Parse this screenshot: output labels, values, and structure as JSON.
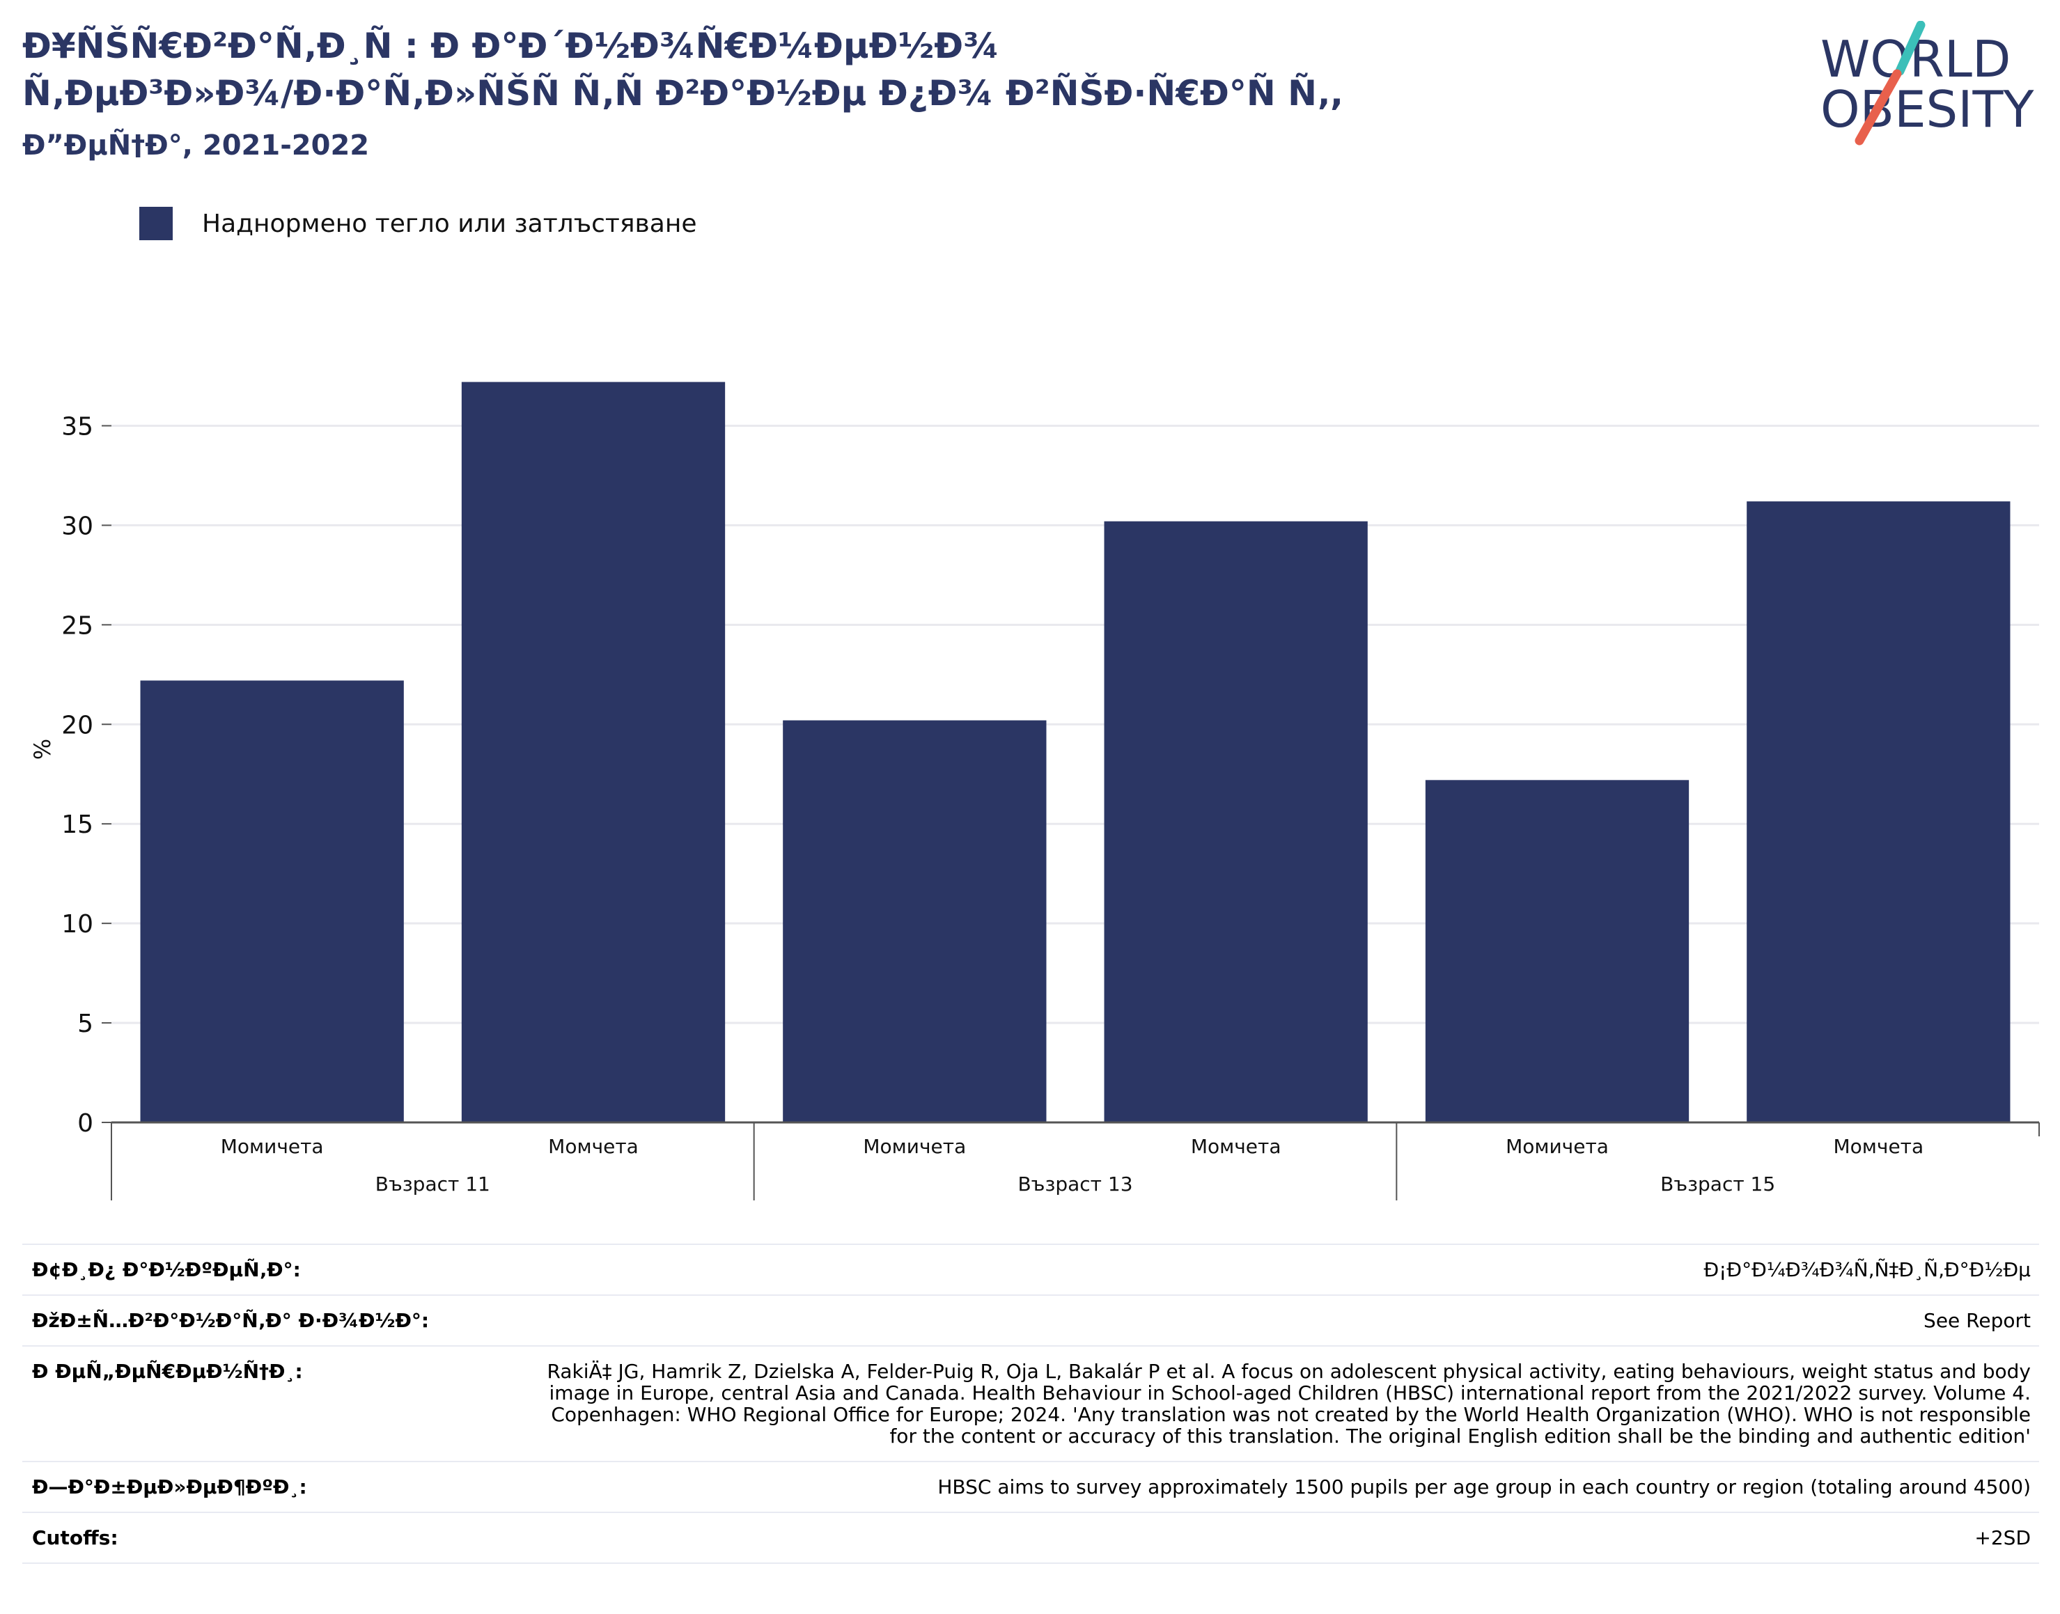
{
  "title": {
    "line1": "Ð¥ÑŠÑ€Ð²Ð°Ñ‚Ð¸Ñ : Ð Ð°Ð´Ð½Ð¾Ñ€Ð¼ÐµÐ½Ð¾",
    "line2": "Ñ‚ÐµÐ³Ð»Ð¾/Ð·Ð°Ñ‚Ð»ÑŠÑ Ñ‚Ñ Ð²Ð°Ð½Ðµ Ð¿Ð¾ Ð²ÑŠÐ·Ñ€Ð°Ñ Ñ‚,",
    "subtitle": "Ð”ÐµÑ†Ð°, 2021-2022"
  },
  "logo": {
    "line1": "WORLD",
    "line2": "OBESITY",
    "accent_teal": "#3bbfb9",
    "accent_red": "#e8604c",
    "text_color": "#2b3664"
  },
  "legend": {
    "label": "Наднормено тегло или затлъстяване",
    "color": "#2b3664"
  },
  "chart_data": {
    "type": "bar",
    "ylabel": "%",
    "ylim": [
      0,
      37.5
    ],
    "yticks": [
      0,
      5,
      10,
      15,
      20,
      25,
      30,
      35
    ],
    "grid": true,
    "legend_position": "top-left",
    "bar_color": "#2b3664",
    "groups": [
      {
        "label": "Възраст 11",
        "categories": [
          "Момичета",
          "Момчета"
        ],
        "values": [
          22.2,
          37.2
        ]
      },
      {
        "label": "Възраст 13",
        "categories": [
          "Момичета",
          "Момчета"
        ],
        "values": [
          20.2,
          30.2
        ]
      },
      {
        "label": "Възраст 15",
        "categories": [
          "Момичета",
          "Момчета"
        ],
        "values": [
          17.2,
          31.2
        ]
      }
    ]
  },
  "info": {
    "rows": [
      {
        "label": "Ð¢Ð¸Ð¿ Ð°Ð½ÐºÐµÑ‚Ð°:",
        "value": "Ð¡Ð°Ð¼Ð¾Ð¾Ñ‚Ñ‡Ð¸Ñ‚Ð°Ð½Ðµ"
      },
      {
        "label": "ÐžÐ±Ñ…Ð²Ð°Ð½Ð°Ñ‚Ð° Ð·Ð¾Ð½Ð°:",
        "value": "See Report"
      },
      {
        "label": "Ð ÐµÑ„ÐµÑ€ÐµÐ½Ñ†Ð¸:",
        "value": "RakiÄ‡ JG, Hamrik Z, Dzielska A, Felder-Puig R, Oja L, Bakalár P et al. A focus on adolescent physical activity, eating behaviours, weight status and body image in Europe, central Asia and Canada. Health Behaviour in School-aged Children (HBSC) international report from the 2021/2022 survey. Volume 4. Copenhagen: WHO Regional Office for Europe; 2024. 'Any translation was not created by the World Health Organization (WHO). WHO is not responsible for the content or accuracy of this translation. The original English edition shall be the binding and authentic edition'"
      },
      {
        "label": "Ð—Ð°Ð±ÐµÐ»ÐµÐ¶ÐºÐ¸:",
        "value": "HBSC aims to survey approximately 1500 pupils per age group in each country or region (totaling around 4500)"
      },
      {
        "label": "Cutoffs:",
        "value": "+2SD"
      }
    ]
  }
}
